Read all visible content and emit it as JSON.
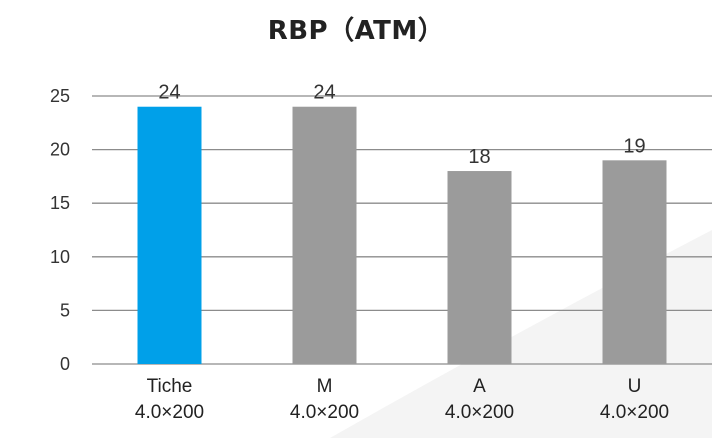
{
  "chart_data": {
    "type": "bar",
    "title": "RBP（ATM）",
    "categories": [
      {
        "name": "Tiche",
        "spec": "4.0×200"
      },
      {
        "name": "M",
        "spec": "4.0×200"
      },
      {
        "name": "A",
        "spec": "4.0×200"
      },
      {
        "name": "U",
        "spec": "4.0×200"
      }
    ],
    "values": [
      24,
      24,
      18,
      19
    ],
    "data_labels": [
      "24",
      "24",
      "18",
      "19"
    ],
    "bar_colors": [
      "#00a0e9",
      "#9b9b9b",
      "#9b9b9b",
      "#9b9b9b"
    ],
    "ylim": [
      0,
      25
    ],
    "yticks": [
      "0",
      "5",
      "10",
      "15",
      "20",
      "25"
    ],
    "grid": true,
    "legend": "none",
    "gridline_color": "#8c8c8c"
  }
}
